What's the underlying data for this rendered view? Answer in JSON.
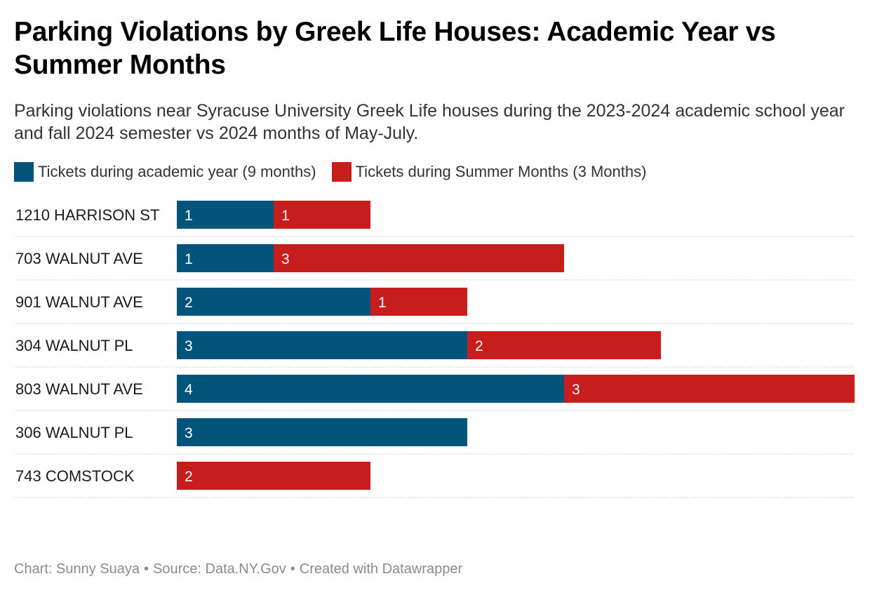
{
  "title": "Parking Violations by Greek Life Houses: Academic Year vs Summer Months",
  "subtitle": "Parking violations near Syracuse University Greek Life houses during the 2023-2024 academic school year and fall 2024 semester vs 2024 months of May-July.",
  "colors": {
    "academic": "#02547b",
    "summer": "#c71e1d"
  },
  "footer": {
    "credit": "Chart: Sunny Suaya",
    "source": "Source: Data.NY.Gov",
    "tool": "Created with Datawrapper",
    "separator": "•"
  },
  "chart_data": {
    "type": "bar",
    "orientation": "horizontal",
    "stacked": true,
    "legend_position": "top-left",
    "xlim": [
      0,
      7
    ],
    "categories": [
      "1210 HARRISON ST",
      "703 WALNUT AVE",
      "901 WALNUT AVE",
      "304 WALNUT PL",
      "803 WALNUT AVE",
      "306 WALNUT PL",
      "743 COMSTOCK"
    ],
    "series": [
      {
        "name": "Tickets during academic year (9 months)",
        "color": "#02547b",
        "values": [
          1,
          1,
          2,
          3,
          4,
          3,
          0
        ]
      },
      {
        "name": "Tickets during Summer Months (3 Months)",
        "color": "#c71e1d",
        "values": [
          1,
          3,
          1,
          2,
          3,
          0,
          2
        ]
      }
    ]
  }
}
